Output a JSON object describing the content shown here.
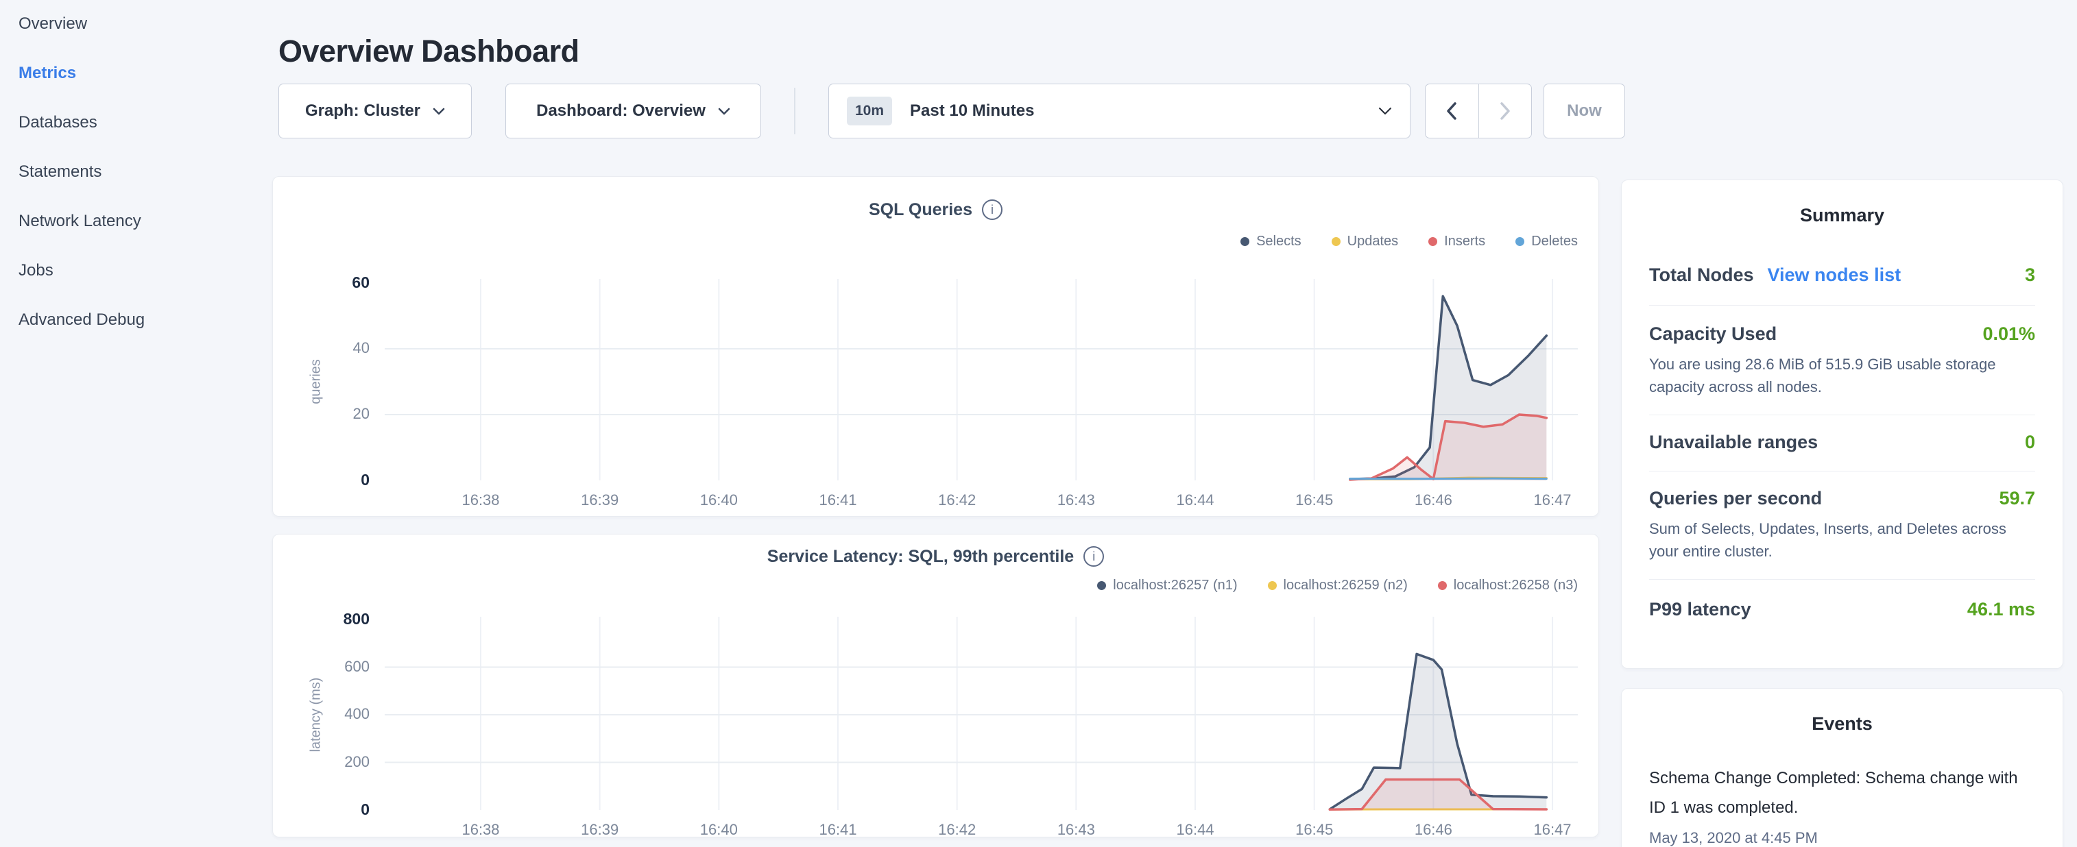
{
  "sidebar": {
    "items": [
      {
        "label": "Overview",
        "active": false
      },
      {
        "label": "Metrics",
        "active": true
      },
      {
        "label": "Databases",
        "active": false
      },
      {
        "label": "Statements",
        "active": false
      },
      {
        "label": "Network Latency",
        "active": false
      },
      {
        "label": "Jobs",
        "active": false
      },
      {
        "label": "Advanced Debug",
        "active": false
      }
    ]
  },
  "header": {
    "title": "Overview Dashboard"
  },
  "toolbar": {
    "graph_dropdown": "Graph: Cluster",
    "dashboard_dropdown": "Dashboard: Overview",
    "time_badge": "10m",
    "time_label": "Past 10 Minutes",
    "now_label": "Now"
  },
  "summary": {
    "title": "Summary",
    "rows": [
      {
        "label": "Total Nodes",
        "link": "View nodes list",
        "value": "3"
      },
      {
        "label": "Capacity Used",
        "value": "0.01%",
        "desc": "You are using 28.6 MiB of 515.9 GiB usable storage capacity across all nodes."
      },
      {
        "label": "Unavailable ranges",
        "value": "0"
      },
      {
        "label": "Queries per second",
        "value": "59.7",
        "desc": "Sum of Selects, Updates, Inserts, and Deletes across your entire cluster."
      },
      {
        "label": "P99 latency",
        "value": "46.1 ms"
      }
    ],
    "accent_green": "#55a31f",
    "link_blue": "#3a85f0"
  },
  "events": {
    "title": "Events",
    "entries": [
      {
        "text": "Schema Change Completed: Schema change with ID 1 was completed.",
        "timestamp": "May 13, 2020 at 4:45 PM"
      }
    ]
  },
  "chart_data": [
    {
      "type": "area",
      "title": "SQL Queries",
      "ylabel": "queries",
      "xlabel": "",
      "x_ticks": [
        "16:38",
        "16:39",
        "16:40",
        "16:41",
        "16:42",
        "16:43",
        "16:44",
        "16:45",
        "16:46",
        "16:47"
      ],
      "y_ticks": [
        0,
        20,
        40,
        60
      ],
      "ylim": [
        0,
        60
      ],
      "x_unit": "minutes since 16:38",
      "grid": true,
      "legend_position": "top-right",
      "series": [
        {
          "name": "Selects",
          "color": "#475872",
          "fill": true,
          "points": [
            [
              7.3,
              0.4
            ],
            [
              7.5,
              0.6
            ],
            [
              7.68,
              1.2
            ],
            [
              7.84,
              4
            ],
            [
              7.97,
              10
            ],
            [
              8.08,
              56
            ],
            [
              8.2,
              47
            ],
            [
              8.33,
              30.5
            ],
            [
              8.48,
              29
            ],
            [
              8.63,
              32
            ],
            [
              8.8,
              38
            ],
            [
              8.95,
              44
            ]
          ]
        },
        {
          "name": "Updates",
          "color": "#eec751",
          "fill": false,
          "points": [
            [
              7.3,
              0.3
            ],
            [
              7.8,
              0.4
            ],
            [
              8.3,
              0.8
            ],
            [
              8.95,
              0.7
            ]
          ]
        },
        {
          "name": "Inserts",
          "color": "#e0696b",
          "fill": true,
          "points": [
            [
              7.3,
              0.2
            ],
            [
              7.48,
              0.6
            ],
            [
              7.66,
              3.6
            ],
            [
              7.78,
              7
            ],
            [
              7.9,
              3.2
            ],
            [
              8.0,
              0.4
            ],
            [
              8.1,
              18
            ],
            [
              8.26,
              17.5
            ],
            [
              8.42,
              16.3
            ],
            [
              8.58,
              17
            ],
            [
              8.72,
              20
            ],
            [
              8.87,
              19.6
            ],
            [
              8.95,
              19
            ]
          ]
        },
        {
          "name": "Deletes",
          "color": "#62a5d8",
          "fill": false,
          "points": [
            [
              7.3,
              0.5
            ],
            [
              7.9,
              0.5
            ],
            [
              8.5,
              0.6
            ],
            [
              8.95,
              0.5
            ]
          ]
        }
      ]
    },
    {
      "type": "area",
      "title": "Service Latency: SQL, 99th percentile",
      "ylabel": "latency (ms)",
      "xlabel": "",
      "x_ticks": [
        "16:38",
        "16:39",
        "16:40",
        "16:41",
        "16:42",
        "16:43",
        "16:44",
        "16:45",
        "16:46",
        "16:47"
      ],
      "y_ticks": [
        0,
        200,
        400,
        600,
        800
      ],
      "ylim": [
        0,
        800
      ],
      "x_unit": "minutes since 16:38",
      "grid": true,
      "legend_position": "top-right",
      "series": [
        {
          "name": "localhost:26257 (n1)",
          "color": "#475872",
          "fill": true,
          "points": [
            [
              7.13,
              3
            ],
            [
              7.27,
              48
            ],
            [
              7.4,
              88
            ],
            [
              7.5,
              178
            ],
            [
              7.72,
              176
            ],
            [
              7.86,
              655
            ],
            [
              8.0,
              630
            ],
            [
              8.07,
              590
            ],
            [
              8.2,
              278
            ],
            [
              8.32,
              64
            ],
            [
              8.5,
              58
            ],
            [
              8.72,
              57
            ],
            [
              8.95,
              53
            ]
          ]
        },
        {
          "name": "localhost:26259 (n2)",
          "color": "#eec751",
          "fill": false,
          "points": [
            [
              7.13,
              2
            ],
            [
              7.6,
              3
            ],
            [
              8.2,
              3
            ],
            [
              8.95,
              3
            ]
          ]
        },
        {
          "name": "localhost:26258 (n3)",
          "color": "#e0696b",
          "fill": true,
          "points": [
            [
              7.13,
              2
            ],
            [
              7.4,
              4
            ],
            [
              7.6,
              128
            ],
            [
              8.22,
              128
            ],
            [
              8.5,
              4
            ],
            [
              8.95,
              3
            ]
          ]
        }
      ]
    }
  ]
}
